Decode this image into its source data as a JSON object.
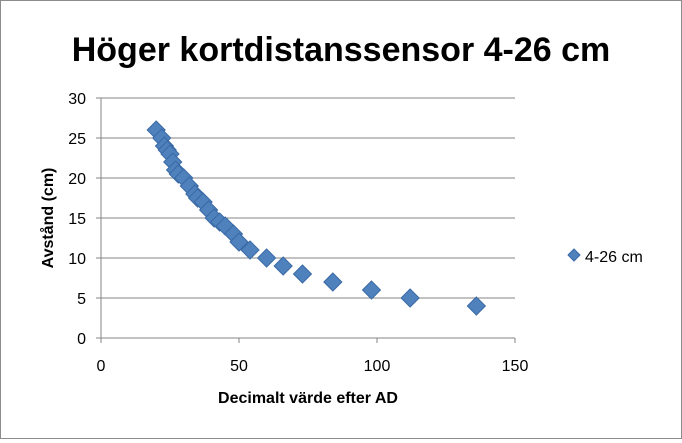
{
  "chart_data": {
    "type": "scatter",
    "title": "Höger kortdistanssensor 4-26 cm",
    "xlabel": "Decimalt värde efter AD",
    "ylabel": "Avstånd (cm)",
    "xlim": [
      0,
      150
    ],
    "ylim": [
      0,
      30
    ],
    "xticks": [
      0,
      50,
      100,
      150
    ],
    "yticks": [
      0,
      5,
      10,
      15,
      20,
      25,
      30
    ],
    "grid": "horizontal",
    "legend_position": "right",
    "series": [
      {
        "name": "4-26 cm",
        "marker": "diamond",
        "color": "#4f81bd",
        "points": [
          [
            20,
            26
          ],
          [
            22,
            25
          ],
          [
            23,
            24
          ],
          [
            24,
            23.5
          ],
          [
            25,
            23
          ],
          [
            26,
            22
          ],
          [
            27,
            21
          ],
          [
            28,
            20.5
          ],
          [
            30,
            20
          ],
          [
            32,
            19
          ],
          [
            34,
            18
          ],
          [
            35,
            17.5
          ],
          [
            37,
            17
          ],
          [
            39,
            16
          ],
          [
            41,
            15
          ],
          [
            43,
            14.5
          ],
          [
            45,
            14
          ],
          [
            48,
            13
          ],
          [
            50,
            12
          ],
          [
            54,
            11
          ],
          [
            60,
            10
          ],
          [
            66,
            9
          ],
          [
            73,
            8
          ],
          [
            84,
            7
          ],
          [
            98,
            6
          ],
          [
            112,
            5
          ],
          [
            136,
            4
          ]
        ]
      }
    ]
  }
}
